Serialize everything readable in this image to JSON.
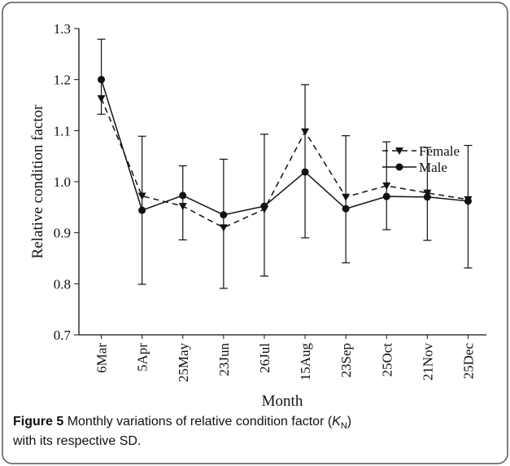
{
  "chart_data": {
    "type": "line",
    "xlabel": "Month",
    "ylabel": "Relative condition factor",
    "categories": [
      "6Mar",
      "5Apr",
      "25May",
      "23Jun",
      "26Jul",
      "15Aug",
      "23Sep",
      "25Oct",
      "21Nov",
      "25Dec"
    ],
    "series": [
      {
        "name": "Female",
        "color": "#111111",
        "dash": true,
        "marker": "triangle-down",
        "values": [
          1.163,
          0.972,
          0.952,
          0.91,
          0.946,
          1.098,
          0.97,
          0.992,
          0.978,
          0.965
        ]
      },
      {
        "name": "Male",
        "color": "#111111",
        "dash": false,
        "marker": "circle",
        "values": [
          1.2,
          0.944,
          0.973,
          0.935,
          0.952,
          1.019,
          0.947,
          0.971,
          0.97,
          0.962
        ]
      }
    ],
    "error_bars": {
      "upper": [
        1.279,
        1.089,
        1.031,
        1.044,
        1.093,
        1.19,
        1.09,
        1.078,
        1.067,
        1.071
      ],
      "lower": [
        1.132,
        0.799,
        0.886,
        0.791,
        0.815,
        0.89,
        0.841,
        0.906,
        0.885,
        0.831
      ]
    },
    "ylim": [
      0.7,
      1.3
    ],
    "yticks": [
      0.7,
      0.8,
      0.9,
      {
        "value": 1,
        "label": "1.0"
      },
      1.1,
      1.2,
      1.3
    ],
    "legend": "upper right",
    "caption": {
      "label": "Figure 5",
      "text_before": "Monthly variations of relative condition factor (",
      "symbol": "K",
      "subscript": "N",
      "text_after": ")",
      "line2": "with its respective SD."
    }
  }
}
